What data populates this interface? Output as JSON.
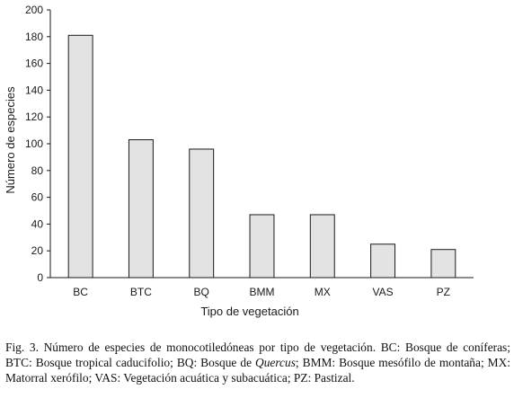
{
  "chart_data": {
    "type": "bar",
    "categories": [
      "BC",
      "BTC",
      "BQ",
      "BMM",
      "MX",
      "VAS",
      "PZ"
    ],
    "values": [
      181,
      103,
      96,
      47,
      47,
      25,
      21
    ],
    "xlabel": "Tipo de vegetación",
    "ylabel": "Número de especies",
    "ylim": [
      0,
      200
    ],
    "yticks": [
      0,
      20,
      40,
      60,
      80,
      100,
      120,
      140,
      160,
      180,
      200
    ],
    "grid": false,
    "bar_color": "#e3e3e3",
    "bar_edge_color": "#1a1a1a"
  },
  "caption": {
    "before": "Fig. 3. Número de especies de monocotiledóneas por tipo de vegetación. BC: Bosque de coníferas; BTC: Bosque tropical caducifolio; BQ: Bosque de ",
    "italic": "Quercus",
    "after": "; BMM: Bosque mesófilo de montaña; MX: Matorral xerófilo; VAS: Vegetación acuática y subacuática; PZ: Pastizal."
  }
}
